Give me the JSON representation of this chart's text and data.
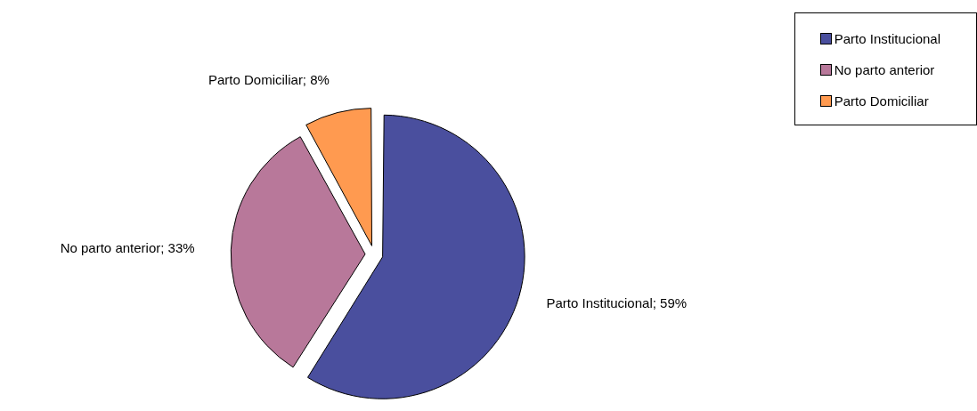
{
  "chart_data": {
    "type": "pie",
    "categories": [
      "Parto Institucional",
      "No parto anterior",
      "Parto Domiciliar"
    ],
    "values": [
      59,
      33,
      8
    ],
    "colors": [
      "#4a4f9e",
      "#b8789a",
      "#ff9a50"
    ],
    "value_labels": [
      "Parto Institucional; 59%",
      "No parto anterior; 33%",
      "Parto Domiciliar; 8%"
    ],
    "legend": "top right"
  }
}
